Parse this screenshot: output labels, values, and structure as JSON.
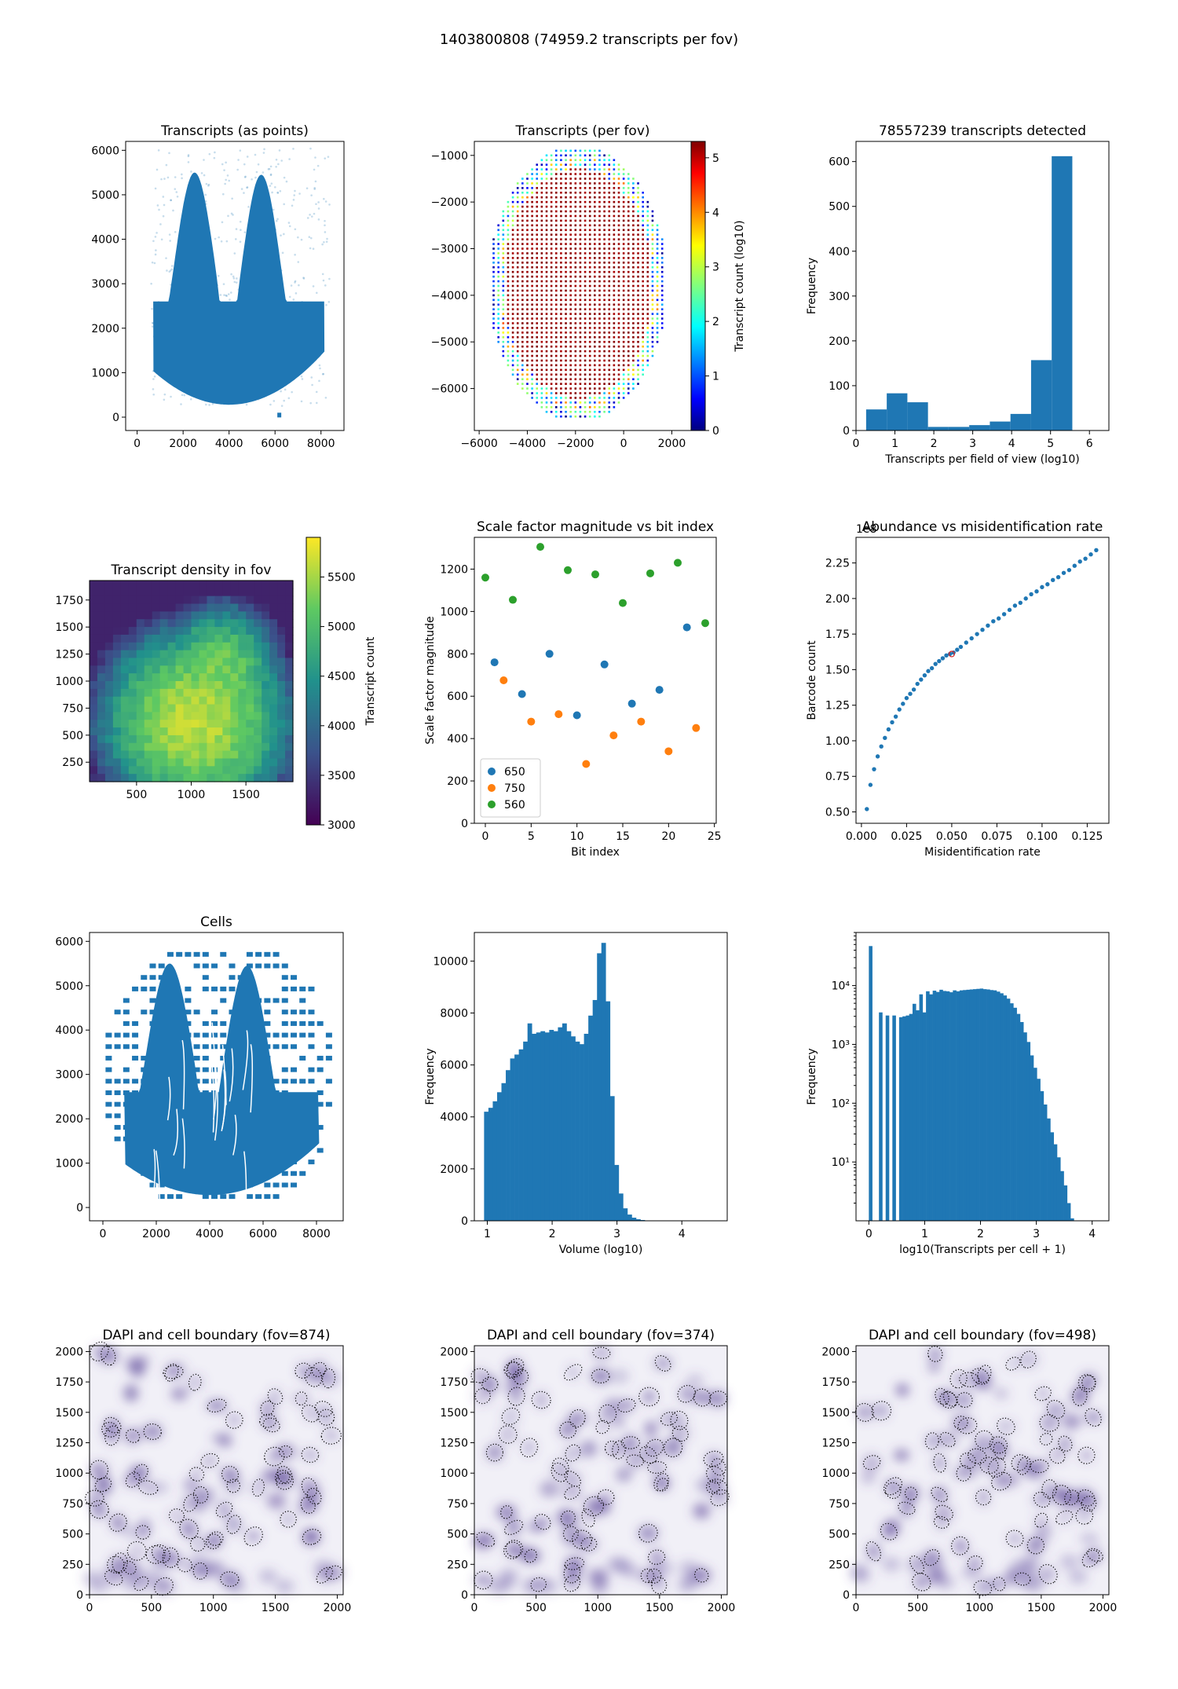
{
  "figure": {
    "title": "1403800808 (74959.2 transcripts per fov)"
  },
  "colors": {
    "blue": "#1f77b4",
    "orange": "#ff7f0e",
    "green": "#2ca02c",
    "dapi": "#5e4a9a"
  },
  "chart_data": [
    {
      "id": "p1",
      "type": "scatter",
      "title": "Transcripts (as points)",
      "xlabel": "",
      "ylabel": "",
      "xlim": [
        -500,
        9000
      ],
      "ylim": [
        -300,
        6200
      ],
      "xticks": [
        "0",
        "2000",
        "4000",
        "6000",
        "8000"
      ],
      "yticks": [
        "0",
        "1000",
        "2000",
        "3000",
        "4000",
        "5000",
        "6000"
      ],
      "description": "dense point cloud of transcripts forming a brain section shape, x 700-8200, y 300-6000"
    },
    {
      "id": "p2",
      "type": "scatter",
      "title": "Transcripts (per fov)",
      "xlabel": "",
      "ylabel": "",
      "xlim": [
        -6200,
        2800
      ],
      "ylim": [
        -6900,
        -700
      ],
      "xticks": [
        "−6000",
        "−4000",
        "−2000",
        "0",
        "2000"
      ],
      "yticks": [
        "−1000",
        "−2000",
        "−3000",
        "−4000",
        "−5000",
        "−6000"
      ],
      "colorbar": {
        "label": "Transcript count (log10)",
        "range": [
          0,
          5.3
        ],
        "ticks": [
          "0",
          "1",
          "2",
          "3",
          "4",
          "5"
        ],
        "cmap": "jet"
      },
      "description": "grid of fields of view colored by log10 transcript count; interior about 5.2, edge fovs 0-3"
    },
    {
      "id": "p3",
      "type": "bar",
      "title": "78557239 transcripts detected",
      "xlabel": "Transcripts per field of view (log10)",
      "ylabel": "Frequency",
      "xlim": [
        0,
        6.5
      ],
      "ylim": [
        0,
        645
      ],
      "xticks": [
        "0",
        "1",
        "2",
        "3",
        "4",
        "5",
        "6"
      ],
      "yticks": [
        "0",
        "100",
        "200",
        "300",
        "400",
        "500",
        "600"
      ],
      "bin_edges": [
        0.26,
        0.79,
        1.32,
        1.85,
        2.38,
        2.91,
        3.44,
        3.97,
        4.5,
        5.03,
        5.56
      ],
      "values": [
        47,
        83,
        63,
        8,
        8,
        12,
        20,
        37,
        157,
        612
      ]
    },
    {
      "id": "p4",
      "type": "heatmap",
      "title": "Transcript density in fov",
      "xlabel": "",
      "ylabel": "",
      "xlim": [
        70,
        1930
      ],
      "ylim": [
        70,
        1930
      ],
      "xticks": [
        "500",
        "1000",
        "1500"
      ],
      "yticks": [
        "250",
        "500",
        "750",
        "1000",
        "1250",
        "1500",
        "1750"
      ],
      "colorbar": {
        "label": "Transcript count",
        "range": [
          3000,
          5900
        ],
        "ticks": [
          "3000",
          "3500",
          "4000",
          "4500",
          "5000",
          "5500"
        ],
        "cmap": "viridis"
      },
      "description": "density highest (about 5500-5800) near center (800-1200, 400-1000), lower at top edge (about 3500-4000)"
    },
    {
      "id": "p5",
      "type": "scatter",
      "title": "Scale factor magnitude vs bit index",
      "xlabel": "Bit index",
      "ylabel": "Scale factor magnitude",
      "xlim": [
        -1.2,
        25.2
      ],
      "ylim": [
        0,
        1350
      ],
      "xticks": [
        "0",
        "5",
        "10",
        "15",
        "20",
        "25"
      ],
      "yticks": [
        "0",
        "200",
        "400",
        "600",
        "800",
        "1000",
        "1200"
      ],
      "legend": "lower-left",
      "series": [
        {
          "name": "650",
          "x": [
            1,
            4,
            7,
            10,
            13,
            16,
            19,
            22
          ],
          "y": [
            760,
            610,
            800,
            510,
            750,
            565,
            630,
            925
          ]
        },
        {
          "name": "750",
          "x": [
            2,
            5,
            8,
            11,
            14,
            17,
            20,
            23
          ],
          "y": [
            675,
            480,
            515,
            280,
            415,
            480,
            340,
            450
          ]
        },
        {
          "name": "560",
          "x": [
            0,
            3,
            6,
            9,
            12,
            15,
            18,
            21,
            24
          ],
          "y": [
            1160,
            1055,
            1305,
            1195,
            1175,
            1040,
            1180,
            1230,
            945
          ]
        }
      ]
    },
    {
      "id": "p6",
      "type": "scatter",
      "title": "Abundance vs misidentification rate",
      "xlabel": "Misidentification rate",
      "ylabel": "Barcode count",
      "xlim": [
        -0.003,
        0.137
      ],
      "ylim": [
        0.42,
        2.43
      ],
      "yscale_label": "1e8",
      "xticks": [
        "0.000",
        "0.025",
        "0.050",
        "0.075",
        "0.100",
        "0.125"
      ],
      "yticks": [
        "0.50",
        "0.75",
        "1.00",
        "1.25",
        "1.50",
        "1.75",
        "2.00",
        "2.25"
      ],
      "x": [
        0.003,
        0.005,
        0.007,
        0.009,
        0.011,
        0.013,
        0.015,
        0.017,
        0.019,
        0.021,
        0.023,
        0.025,
        0.027,
        0.029,
        0.031,
        0.033,
        0.035,
        0.037,
        0.039,
        0.041,
        0.043,
        0.045,
        0.047,
        0.049,
        0.051,
        0.053,
        0.055,
        0.058,
        0.061,
        0.064,
        0.067,
        0.07,
        0.073,
        0.076,
        0.079,
        0.082,
        0.085,
        0.088,
        0.091,
        0.094,
        0.097,
        0.1,
        0.103,
        0.106,
        0.109,
        0.112,
        0.115,
        0.118,
        0.121,
        0.124,
        0.127,
        0.13
      ],
      "y": [
        0.52,
        0.69,
        0.8,
        0.89,
        0.96,
        1.02,
        1.08,
        1.13,
        1.17,
        1.22,
        1.26,
        1.3,
        1.33,
        1.36,
        1.4,
        1.43,
        1.46,
        1.49,
        1.51,
        1.54,
        1.56,
        1.58,
        1.6,
        1.61,
        1.62,
        1.64,
        1.66,
        1.69,
        1.72,
        1.75,
        1.78,
        1.81,
        1.84,
        1.86,
        1.89,
        1.92,
        1.95,
        1.97,
        2.0,
        2.03,
        2.05,
        2.08,
        2.1,
        2.13,
        2.15,
        2.18,
        2.2,
        2.23,
        2.26,
        2.28,
        2.31,
        2.34
      ],
      "highlight": {
        "x": 0.05,
        "y": 1.61
      }
    },
    {
      "id": "p7",
      "type": "scatter",
      "title": "Cells",
      "xlabel": "",
      "ylabel": "",
      "xlim": [
        -500,
        9000
      ],
      "ylim": [
        -300,
        6200
      ],
      "xticks": [
        "0",
        "2000",
        "4000",
        "6000",
        "8000"
      ],
      "yticks": [
        "0",
        "1000",
        "2000",
        "3000",
        "4000",
        "5000",
        "6000"
      ],
      "description": "cell centroids forming the brain section with sparse tiled fov blocks around the edges"
    },
    {
      "id": "p8",
      "type": "bar",
      "title": "",
      "xlabel": "Volume (log10)",
      "ylabel": "Frequency",
      "xlim": [
        0.8,
        4.7
      ],
      "ylim": [
        0,
        11100
      ],
      "xticks": [
        "1",
        "2",
        "3",
        "4"
      ],
      "yticks": [
        "0",
        "2000",
        "4000",
        "6000",
        "8000",
        "10000"
      ],
      "bin_start": 0.95,
      "bin_width": 0.067,
      "values": [
        4200,
        4350,
        4600,
        4950,
        5300,
        5800,
        6250,
        6400,
        6600,
        6900,
        7600,
        7200,
        7250,
        7300,
        7250,
        7350,
        7300,
        7450,
        7600,
        7300,
        7100,
        6900,
        6800,
        7200,
        7900,
        8500,
        10300,
        10700,
        8450,
        4800,
        2150,
        1050,
        480,
        240,
        120,
        60,
        30,
        15,
        6,
        2
      ]
    },
    {
      "id": "p9",
      "type": "bar",
      "title": "",
      "xlabel": "log10(Transcripts per cell + 1)",
      "ylabel": "Frequency",
      "yscale": "log",
      "xlim": [
        -0.23,
        4.3
      ],
      "ylim": [
        1,
        80000
      ],
      "xticks": [
        "0",
        "1",
        "2",
        "3",
        "4"
      ],
      "yticks": [
        "10¹",
        "10²",
        "10³",
        "10⁴"
      ],
      "bin_start": 0,
      "bin_width": 0.0602,
      "values": [
        47000,
        0,
        0,
        3500,
        0,
        3100,
        0,
        3100,
        0,
        2900,
        3000,
        3100,
        3300,
        4900,
        3800,
        7100,
        3500,
        8000,
        7100,
        8200,
        7800,
        8500,
        8100,
        8000,
        7700,
        8300,
        8000,
        8300,
        8400,
        8500,
        8600,
        8700,
        8800,
        8900,
        8700,
        8600,
        8400,
        8300,
        7900,
        7400,
        6800,
        6000,
        5000,
        4200,
        3300,
        2400,
        1600,
        1100,
        650,
        400,
        260,
        160,
        95,
        55,
        32,
        20,
        12,
        7,
        4,
        2,
        1.1,
        1
      ]
    },
    {
      "id": "p10",
      "type": "image",
      "title": "DAPI and cell boundary (fov=874)",
      "xlim": [
        0,
        2048
      ],
      "ylim": [
        0,
        2048
      ],
      "xticks": [
        "0",
        "500",
        "1000",
        "1500",
        "2000"
      ],
      "yticks": [
        "0",
        "250",
        "500",
        "750",
        "1000",
        "1250",
        "1500",
        "1750",
        "2000"
      ]
    },
    {
      "id": "p11",
      "type": "image",
      "title": "DAPI and cell boundary (fov=374)",
      "xlim": [
        0,
        2048
      ],
      "ylim": [
        0,
        2048
      ],
      "xticks": [
        "0",
        "500",
        "1000",
        "1500",
        "2000"
      ],
      "yticks": [
        "0",
        "250",
        "500",
        "750",
        "1000",
        "1250",
        "1500",
        "1750",
        "2000"
      ]
    },
    {
      "id": "p12",
      "type": "image",
      "title": "DAPI and cell boundary (fov=498)",
      "xlim": [
        0,
        2048
      ],
      "ylim": [
        0,
        2048
      ],
      "xticks": [
        "0",
        "500",
        "1000",
        "1500",
        "2000"
      ],
      "yticks": [
        "0",
        "250",
        "500",
        "750",
        "1000",
        "1250",
        "1500",
        "1750",
        "2000"
      ]
    }
  ]
}
